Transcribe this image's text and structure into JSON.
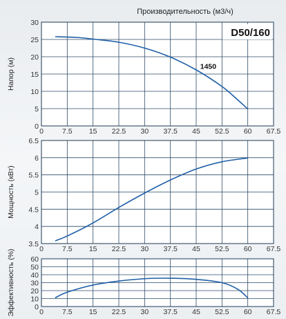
{
  "chart_data": [
    {
      "type": "line",
      "title": "Производительность (м3/ч)",
      "model_label": "D50/160",
      "ylabel": "Напор (м)",
      "xlim": [
        0,
        67.5
      ],
      "ylim": [
        0,
        30
      ],
      "x_ticks": [
        "0",
        "7.5",
        "15",
        "22.5",
        "30",
        "37.5",
        "45",
        "52.5",
        "60",
        "67.5"
      ],
      "y_ticks": [
        "0",
        "5",
        "10",
        "15",
        "20",
        "25",
        "30"
      ],
      "grid": true,
      "series": [
        {
          "name": "1450",
          "color": "#1f5fa8",
          "x": [
            4,
            10,
            15,
            22.5,
            30,
            37.5,
            45,
            52.5,
            57,
            60
          ],
          "y": [
            25.8,
            25.6,
            25.1,
            24.2,
            22.5,
            19.9,
            16.2,
            11.4,
            7.6,
            4.9
          ]
        }
      ]
    },
    {
      "type": "line",
      "ylabel": "Мощность (кВт)",
      "xlim": [
        0,
        67.5
      ],
      "ylim": [
        3.5,
        6.5
      ],
      "x_ticks": [
        "0",
        "7.5",
        "15",
        "22.5",
        "30",
        "37.5",
        "45",
        "52.5",
        "60",
        "67.5"
      ],
      "y_ticks": [
        "3.5",
        "4",
        "4.5",
        "5",
        "5.5",
        "6",
        "6.5"
      ],
      "grid": true,
      "series": [
        {
          "color": "#1f5fa8",
          "x": [
            4,
            7.5,
            15,
            22.5,
            30,
            37.5,
            45,
            52.5,
            60
          ],
          "y": [
            3.58,
            3.72,
            4.1,
            4.55,
            4.97,
            5.35,
            5.67,
            5.88,
            5.99
          ]
        }
      ]
    },
    {
      "type": "line",
      "ylabel": "Эффективность (%)",
      "xlim": [
        0,
        67.5
      ],
      "ylim": [
        0,
        60
      ],
      "x_ticks": [
        "0",
        "7.5",
        "15",
        "22.5",
        "30",
        "37.5",
        "45",
        "52.5",
        "60",
        "67.5"
      ],
      "y_ticks": [
        "0",
        "10",
        "20",
        "30",
        "40",
        "50",
        "60"
      ],
      "grid": true,
      "series": [
        {
          "color": "#1f5fa8",
          "x": [
            4,
            7.5,
            15,
            22.5,
            30,
            37.5,
            45,
            52.5,
            57,
            60
          ],
          "y": [
            11,
            18,
            27,
            32,
            35,
            35.6,
            34.2,
            30,
            22,
            11
          ]
        }
      ]
    }
  ]
}
